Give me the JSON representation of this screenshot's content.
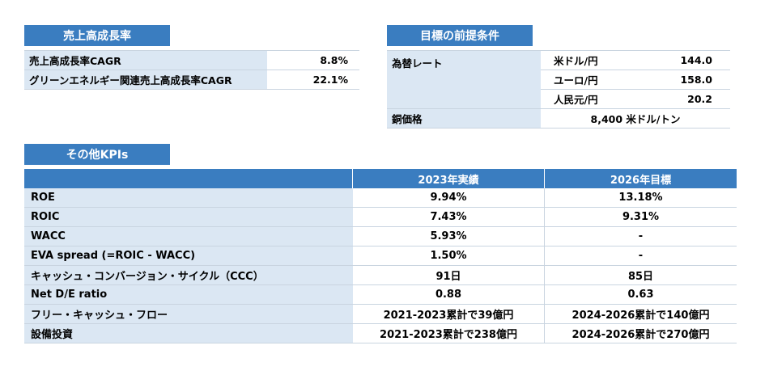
{
  "growth": {
    "title": "売上高成長率",
    "rows": [
      {
        "label": "売上高成長率CAGR",
        "value": "8.8%"
      },
      {
        "label": "グリーンエネルギー関連売上高成長率CAGR",
        "value": "22.1%"
      }
    ]
  },
  "assumptions": {
    "title": "目標の前提条件",
    "fx_label": "為替レート",
    "fx": [
      {
        "currency": "米ドル/円",
        "value": "144.0"
      },
      {
        "currency": "ユーロ/円",
        "value": "158.0"
      },
      {
        "currency": "人民元/円",
        "value": "20.2"
      }
    ],
    "copper_label": "銅価格",
    "copper_value": "8,400 米ドル/トン"
  },
  "kpi": {
    "title": "その他KPIs",
    "col1": "2023年実績",
    "col2": "2026年目標",
    "rows": [
      {
        "label": "ROE",
        "v2023": "9.94%",
        "v2026": "13.18%"
      },
      {
        "label": "ROIC",
        "v2023": "7.43%",
        "v2026": "9.31%"
      },
      {
        "label": "WACC",
        "v2023": "5.93%",
        "v2026": "-"
      },
      {
        "label": "EVA spread (=ROIC - WACC)",
        "v2023": "1.50%",
        "v2026": "-"
      },
      {
        "label": "キャッシュ・コンバージョン・サイクル（CCC）",
        "v2023": "91日",
        "v2026": "85日"
      },
      {
        "label": "Net D/E ratio",
        "v2023": "0.88",
        "v2026": "0.63"
      },
      {
        "label": "フリー・キャッシュ・フロー",
        "v2023": "2021-2023累計で39億円",
        "v2026": "2024-2026累計で140億円"
      },
      {
        "label": "設備投資",
        "v2023": "2021-2023累計で238億円",
        "v2026": "2024-2026累計で270億円"
      }
    ]
  }
}
